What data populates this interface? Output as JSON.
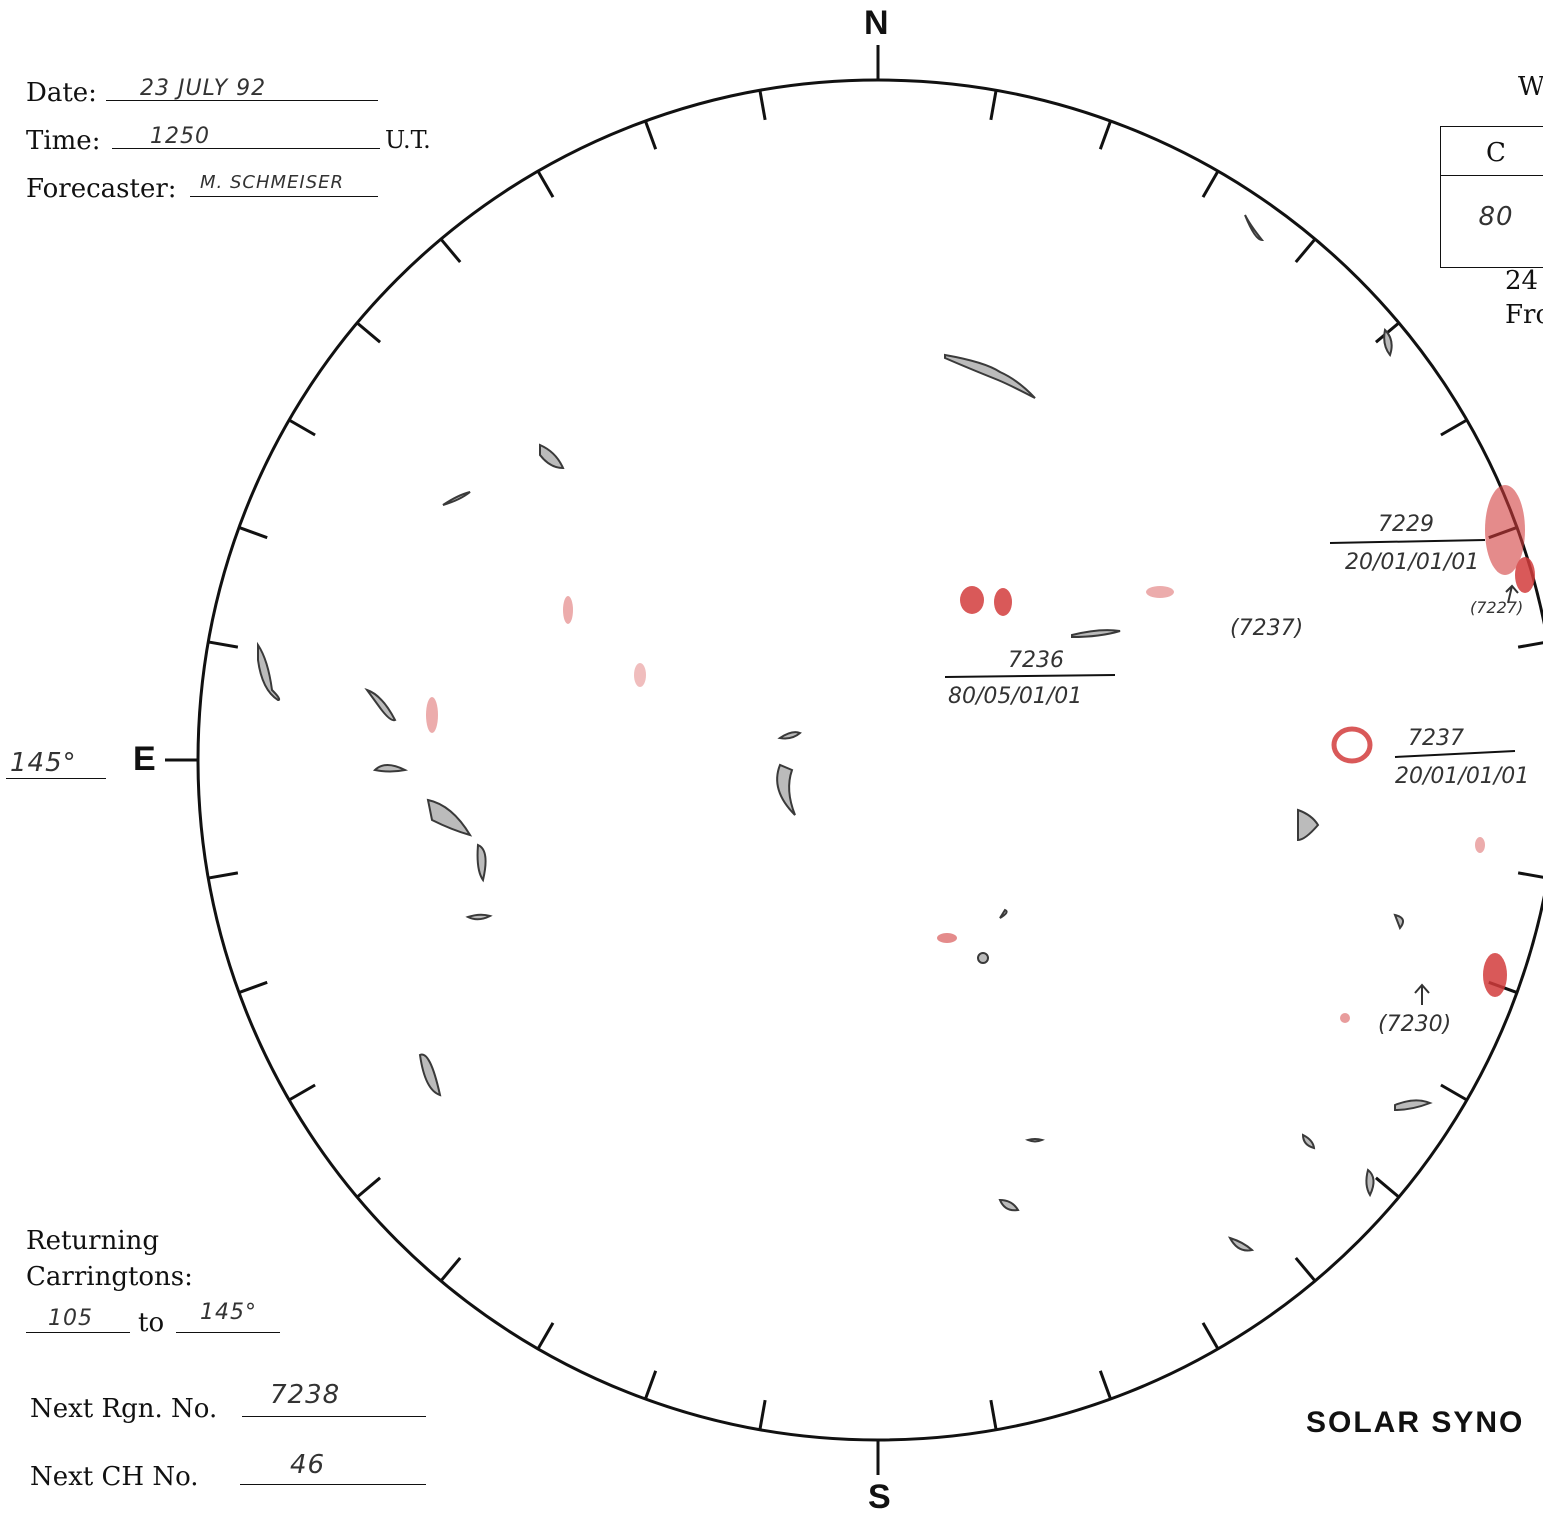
{
  "header": {
    "date_label": "Date:",
    "date_value": "23 JULY 92",
    "time_label": "Time:",
    "time_value": "1250",
    "time_unit": "U.T.",
    "forecaster_label": "Forecaster:",
    "forecaster_value": "M. SCHMEISER"
  },
  "compass": {
    "north": "N",
    "south": "S",
    "east": "E"
  },
  "east_limb_longitude": "145°",
  "returning": {
    "label_line1": "Returning",
    "label_line2": "Carringtons:",
    "from": "105",
    "to_word": "to",
    "to": "145°"
  },
  "next_region": {
    "label": "Next Rgn. No.",
    "value": "7238"
  },
  "next_ch": {
    "label": "Next CH No.",
    "value": "46"
  },
  "right_panel": {
    "w_heading": "W",
    "table_header": "C",
    "table_value": "80",
    "line1": "24",
    "line2": "Fro"
  },
  "title": "SOLAR SYNO",
  "regions": [
    {
      "number": "7229",
      "code": "20/01/01/01"
    },
    {
      "number": "7236",
      "code": "80/05/01/01"
    },
    {
      "number": "7237",
      "code": "20/01/01/01"
    }
  ],
  "notes": [
    {
      "text": "(7237)"
    },
    {
      "text": "(7227)"
    },
    {
      "text": "(7230)"
    }
  ],
  "colors": {
    "ink": "#111111",
    "pencil": "#3a3a3a",
    "plage": "#d23c3c"
  }
}
